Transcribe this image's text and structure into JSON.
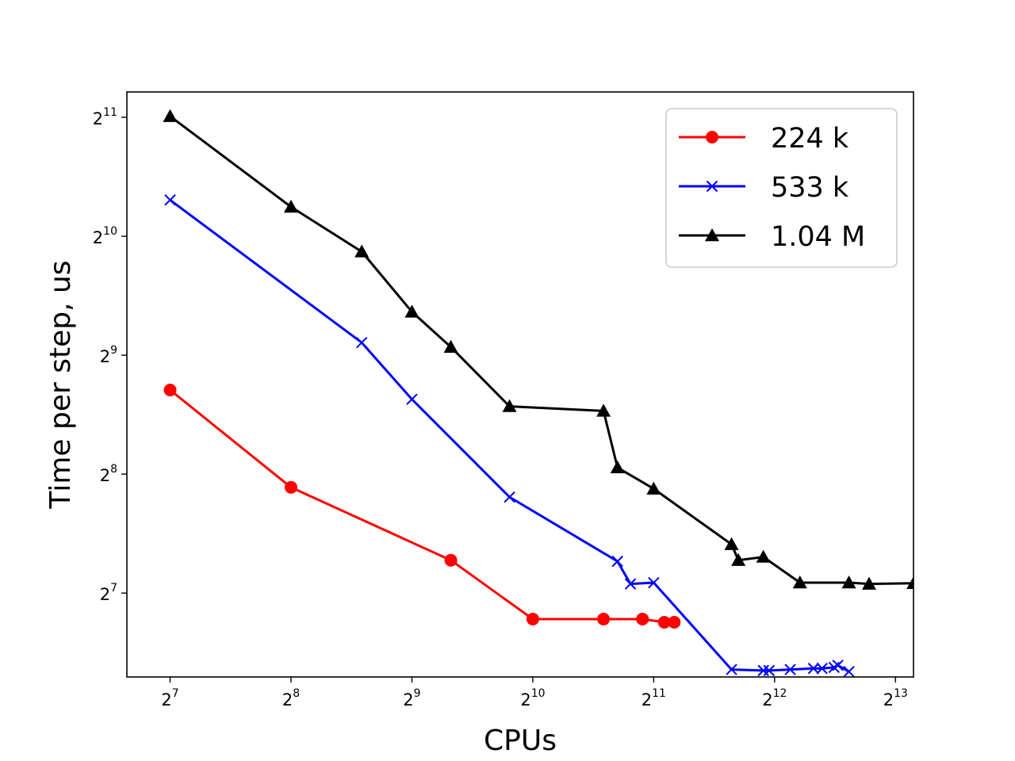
{
  "chart_data": {
    "type": "line",
    "title": "",
    "xlabel": "CPUs",
    "ylabel": "Time per step, us",
    "x_scale": "log2",
    "y_scale": "log2",
    "xlim": [
      99.9,
      9082
    ],
    "ylim": [
      78.5,
      2374
    ],
    "x_ticks": [
      {
        "base": "2",
        "exp": "7",
        "value": 128
      },
      {
        "base": "2",
        "exp": "8",
        "value": 256
      },
      {
        "base": "2",
        "exp": "9",
        "value": 512
      },
      {
        "base": "2",
        "exp": "10",
        "value": 1024
      },
      {
        "base": "2",
        "exp": "11",
        "value": 2048
      },
      {
        "base": "2",
        "exp": "12",
        "value": 4096
      },
      {
        "base": "2",
        "exp": "13",
        "value": 8192
      }
    ],
    "y_ticks": [
      {
        "base": "2",
        "exp": "7",
        "value": 128
      },
      {
        "base": "2",
        "exp": "8",
        "value": 256
      },
      {
        "base": "2",
        "exp": "9",
        "value": 512
      },
      {
        "base": "2",
        "exp": "10",
        "value": 1024
      },
      {
        "base": "2",
        "exp": "11",
        "value": 2048
      }
    ],
    "grid": false,
    "legend_position": "top-right",
    "series": [
      {
        "name": "224 k",
        "color": "#ff0000",
        "marker": "circle",
        "points": [
          {
            "x": 128,
            "y": 418
          },
          {
            "x": 256,
            "y": 237
          },
          {
            "x": 640,
            "y": 155
          },
          {
            "x": 1024,
            "y": 110
          },
          {
            "x": 1536,
            "y": 110
          },
          {
            "x": 1920,
            "y": 110
          },
          {
            "x": 2176,
            "y": 108
          },
          {
            "x": 2304,
            "y": 108
          }
        ]
      },
      {
        "name": "533 k",
        "color": "#0000ff",
        "marker": "x",
        "points": [
          {
            "x": 128,
            "y": 1265
          },
          {
            "x": 384,
            "y": 551
          },
          {
            "x": 512,
            "y": 396
          },
          {
            "x": 896,
            "y": 224
          },
          {
            "x": 1664,
            "y": 154
          },
          {
            "x": 1792,
            "y": 135
          },
          {
            "x": 2048,
            "y": 136
          },
          {
            "x": 3200,
            "y": 82
          },
          {
            "x": 3840,
            "y": 81.5
          },
          {
            "x": 3968,
            "y": 81.5
          },
          {
            "x": 4480,
            "y": 82
          },
          {
            "x": 5120,
            "y": 82.5
          },
          {
            "x": 5376,
            "y": 82.5
          },
          {
            "x": 5760,
            "y": 83
          },
          {
            "x": 5888,
            "y": 84
          },
          {
            "x": 6272,
            "y": 81
          }
        ]
      },
      {
        "name": "1.04 M",
        "color": "#000000",
        "marker": "triangle",
        "points": [
          {
            "x": 128,
            "y": 2060
          },
          {
            "x": 256,
            "y": 1215
          },
          {
            "x": 384,
            "y": 936
          },
          {
            "x": 512,
            "y": 659
          },
          {
            "x": 640,
            "y": 537
          },
          {
            "x": 896,
            "y": 380
          },
          {
            "x": 1536,
            "y": 370
          },
          {
            "x": 1664,
            "y": 266
          },
          {
            "x": 2048,
            "y": 235
          },
          {
            "x": 3200,
            "y": 170
          },
          {
            "x": 3328,
            "y": 155
          },
          {
            "x": 3840,
            "y": 158
          },
          {
            "x": 4736,
            "y": 136
          },
          {
            "x": 6272,
            "y": 136
          },
          {
            "x": 7040,
            "y": 135
          },
          {
            "x": 9088,
            "y": 135.5
          },
          {
            "x": 10240,
            "y": 138
          }
        ]
      }
    ]
  }
}
